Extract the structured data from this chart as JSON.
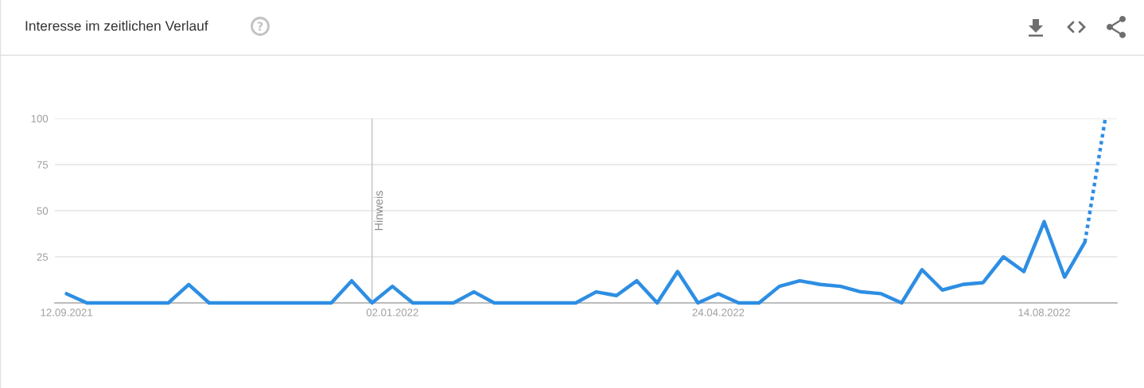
{
  "chart_data": {
    "type": "line",
    "title": "Interesse im zeitlichen Verlauf",
    "x": [
      "2021-09-12",
      "2021-09-19",
      "2021-09-26",
      "2021-10-03",
      "2021-10-10",
      "2021-10-17",
      "2021-10-24",
      "2021-10-31",
      "2021-11-07",
      "2021-11-14",
      "2021-11-21",
      "2021-11-28",
      "2021-12-05",
      "2021-12-12",
      "2021-12-19",
      "2021-12-26",
      "2022-01-02",
      "2022-01-09",
      "2022-01-16",
      "2022-01-23",
      "2022-01-30",
      "2022-02-06",
      "2022-02-13",
      "2022-02-20",
      "2022-02-27",
      "2022-03-06",
      "2022-03-13",
      "2022-03-20",
      "2022-03-27",
      "2022-04-03",
      "2022-04-10",
      "2022-04-17",
      "2022-04-24",
      "2022-05-01",
      "2022-05-08",
      "2022-05-15",
      "2022-05-22",
      "2022-05-29",
      "2022-06-05",
      "2022-06-12",
      "2022-06-19",
      "2022-06-26",
      "2022-07-03",
      "2022-07-10",
      "2022-07-17",
      "2022-07-24",
      "2022-07-31",
      "2022-08-07",
      "2022-08-14",
      "2022-08-21",
      "2022-08-28"
    ],
    "series": [
      {
        "color": "#2d8ee3",
        "line_style": "solid",
        "values": [
          5,
          0,
          0,
          0,
          0,
          0,
          10,
          0,
          0,
          0,
          0,
          0,
          0,
          0,
          12,
          0,
          9,
          0,
          0,
          0,
          6,
          0,
          0,
          0,
          0,
          0,
          6,
          4,
          12,
          0,
          17,
          0,
          5,
          0,
          0,
          9,
          12,
          10,
          9,
          6,
          5,
          0,
          18,
          7,
          10,
          11,
          25,
          17,
          44,
          14,
          33
        ]
      },
      {
        "color": "#2d8ee3",
        "line_style": "dotted",
        "x": [
          "2022-08-28",
          "2022-09-04"
        ],
        "values": [
          33,
          100
        ]
      }
    ],
    "xlim": [
      "2021-09-08",
      "2022-09-08"
    ],
    "xticks": [
      {
        "value": "2021-09-12",
        "label": "12.09.2021"
      },
      {
        "value": "2022-01-02",
        "label": "02.01.2022"
      },
      {
        "value": "2022-04-24",
        "label": "24.04.2022"
      },
      {
        "value": "2022-08-14",
        "label": "14.08.2022"
      }
    ],
    "ylim": [
      0,
      100
    ],
    "yticks": [
      {
        "value": 0,
        "label": null
      },
      25,
      50,
      75,
      100
    ],
    "grid": "y",
    "ref_lines": [
      {
        "axis": "x",
        "value": "2021-12-26",
        "label": "Hinweis",
        "color": "#c4c4c4"
      }
    ]
  }
}
